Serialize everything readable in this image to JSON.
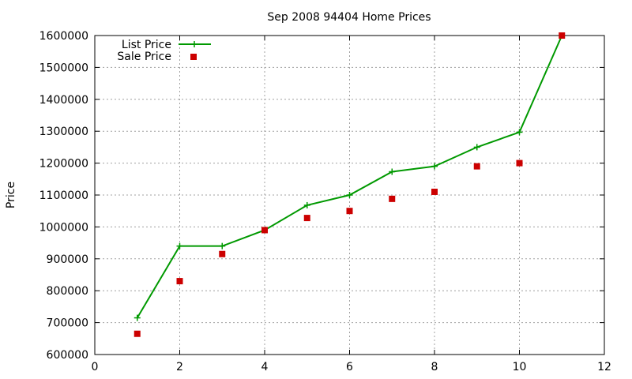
{
  "chart_data": {
    "type": "line",
    "title": "Sep 2008 94404 Home Prices",
    "xlabel": "",
    "ylabel": "Price",
    "xlim": [
      0,
      12
    ],
    "ylim": [
      600000,
      1600000
    ],
    "xticks": [
      0,
      2,
      4,
      6,
      8,
      10,
      12
    ],
    "yticks": [
      600000,
      700000,
      800000,
      900000,
      1000000,
      1100000,
      1200000,
      1300000,
      1400000,
      1500000,
      1600000
    ],
    "grid": true,
    "legend_position": "top-left",
    "series": [
      {
        "name": "List Price",
        "style": "line-with-plus-markers",
        "color": "#009900",
        "x": [
          1,
          2,
          3,
          4,
          5,
          6,
          7,
          8,
          9,
          10,
          11
        ],
        "y": [
          715000,
          940000,
          940000,
          990000,
          1068000,
          1100000,
          1173000,
          1190000,
          1250000,
          1297000,
          1600000
        ]
      },
      {
        "name": "Sale Price",
        "style": "square-markers",
        "color": "#cc0000",
        "x": [
          1,
          2,
          3,
          4,
          5,
          6,
          7,
          8,
          9,
          10,
          11
        ],
        "y": [
          665000,
          830000,
          915000,
          990000,
          1028000,
          1050000,
          1088000,
          1110000,
          1190000,
          1200000,
          1600000
        ]
      }
    ]
  }
}
